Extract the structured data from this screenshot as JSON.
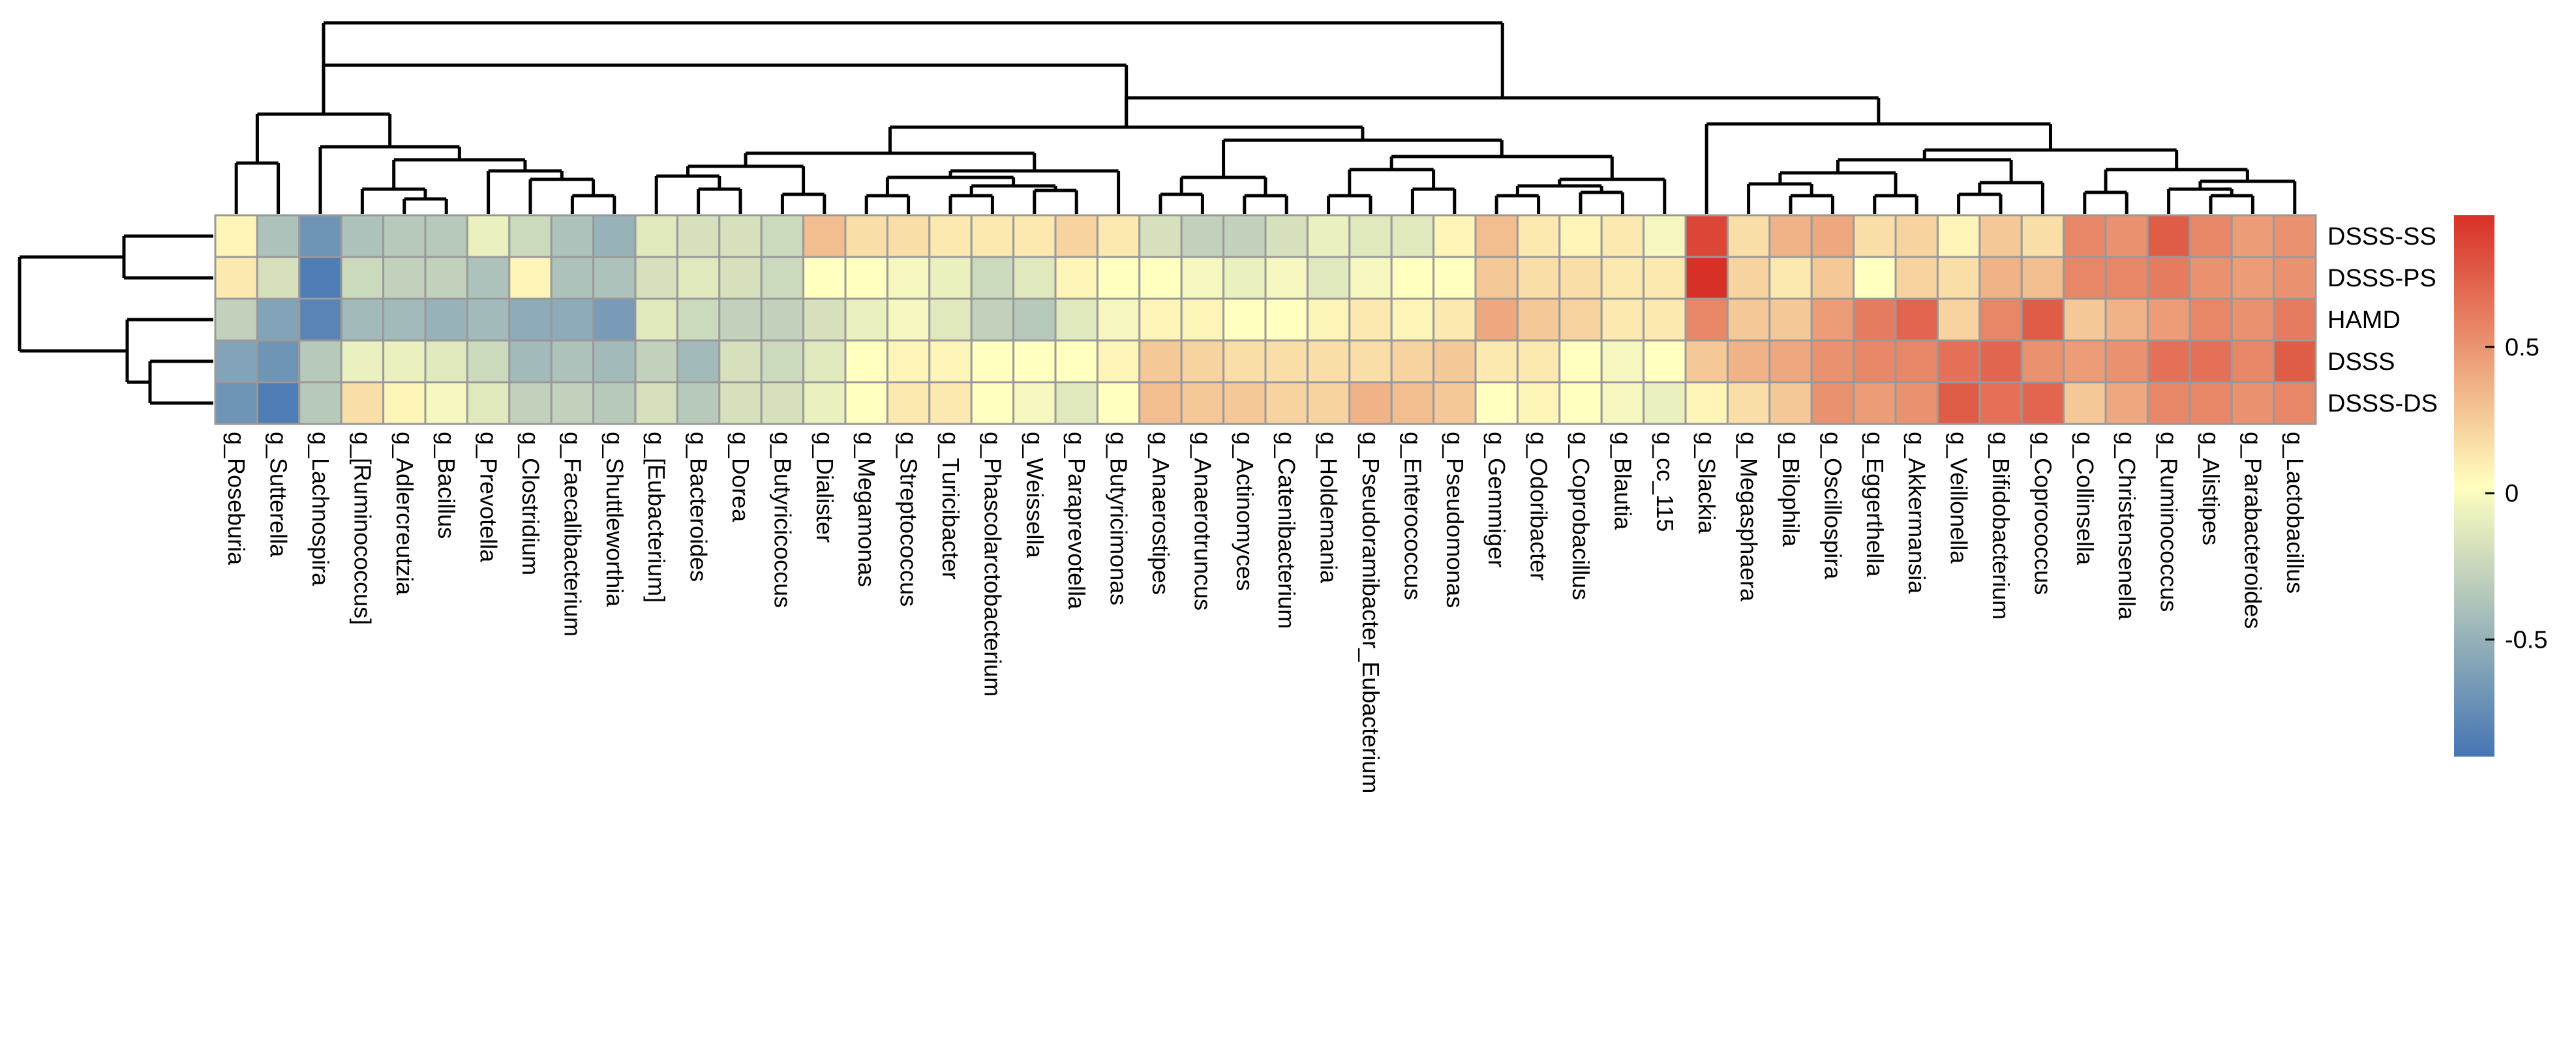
{
  "chart_data": {
    "type": "heatmap",
    "title": "",
    "xlabel": "",
    "ylabel": "",
    "rows": [
      "DSSS-SS",
      "DSSS-PS",
      "HAMD",
      "DSSS",
      "DSSS-DS"
    ],
    "columns": [
      "g_Roseburia",
      "g_Sutterella",
      "g_Lachnospira",
      "g_[Ruminococcus]",
      "g_Adlercreutzia",
      "g_Bacillus",
      "g_Prevotella",
      "g_Clostridium",
      "g_Faecalibacterium",
      "g_Shuttleworthia",
      "g_[Eubacterium]",
      "g_Bacteroides",
      "g_Dorea",
      "g_Butyricicoccus",
      "g_Dialister",
      "g_Megamonas",
      "g_Streptococcus",
      "g_Turicibacter",
      "g_Phascolarctobacterium",
      "g_Weissella",
      "g_Paraprevotella",
      "g_Butyricimonas",
      "g_Anaerostipes",
      "g_Anaerotruncus",
      "g_Actinomyces",
      "g_Catenibacterium",
      "g_Holdemania",
      "g_Pseudoramibacter_Eubacterium",
      "g_Enterococcus",
      "g_Pseudomonas",
      "g_Gemmiger",
      "g_Odoribacter",
      "g_Coprobacillus",
      "g_Blautia",
      "g_cc_115",
      "g_Slackia",
      "g_Megasphaera",
      "g_Bilophila",
      "g_Oscillospira",
      "g_Eggerthella",
      "g_Akkermansia",
      "g_Veillonella",
      "g_Bifidobacterium",
      "g_Coprococcus",
      "g_Collinsella",
      "g_Christensenella",
      "g_Ruminococcus",
      "g_Alistipes",
      "g_Parabacteroides",
      "g_Lactobacillus"
    ],
    "values": [
      [
        0.05,
        -0.4,
        -0.7,
        -0.4,
        -0.35,
        -0.35,
        -0.1,
        -0.25,
        -0.4,
        -0.5,
        -0.15,
        -0.2,
        -0.2,
        -0.25,
        0.3,
        0.15,
        0.15,
        0.1,
        0.1,
        0.1,
        0.2,
        0.1,
        -0.2,
        -0.3,
        -0.3,
        -0.2,
        -0.1,
        -0.15,
        -0.15,
        0.05,
        0.3,
        0.1,
        0.05,
        0.1,
        -0.05,
        0.85,
        0.15,
        0.35,
        0.4,
        0.15,
        0.2,
        0.05,
        0.25,
        0.15,
        0.55,
        0.5,
        0.75,
        0.55,
        0.45,
        0.5
      ],
      [
        0.1,
        -0.2,
        -0.85,
        -0.25,
        -0.3,
        -0.3,
        -0.4,
        0.05,
        -0.4,
        -0.4,
        -0.2,
        -0.15,
        -0.2,
        -0.25,
        0.0,
        0.0,
        -0.05,
        -0.1,
        -0.25,
        -0.15,
        0.05,
        0.0,
        0.0,
        -0.05,
        -0.1,
        -0.05,
        -0.15,
        -0.05,
        0.0,
        0.0,
        0.25,
        0.15,
        0.15,
        0.1,
        0.1,
        0.95,
        0.2,
        0.1,
        0.25,
        0.0,
        0.2,
        0.15,
        0.35,
        0.3,
        0.55,
        0.55,
        0.6,
        0.5,
        0.45,
        0.5
      ],
      [
        -0.3,
        -0.6,
        -0.8,
        -0.45,
        -0.45,
        -0.5,
        -0.45,
        -0.55,
        -0.55,
        -0.65,
        -0.15,
        -0.25,
        -0.3,
        -0.3,
        -0.2,
        -0.1,
        -0.05,
        -0.15,
        -0.3,
        -0.35,
        -0.15,
        -0.05,
        0.05,
        0.05,
        0.0,
        0.0,
        0.05,
        0.1,
        0.05,
        0.1,
        0.4,
        0.25,
        0.2,
        0.1,
        0.1,
        0.55,
        0.25,
        0.25,
        0.45,
        0.6,
        0.7,
        0.2,
        0.55,
        0.75,
        0.25,
        0.35,
        0.45,
        0.55,
        0.5,
        0.6
      ],
      [
        -0.6,
        -0.7,
        -0.35,
        -0.1,
        -0.1,
        -0.15,
        -0.25,
        -0.45,
        -0.4,
        -0.45,
        -0.3,
        -0.45,
        -0.2,
        -0.25,
        -0.15,
        0.0,
        0.05,
        0.05,
        0.0,
        0.0,
        0.0,
        0.05,
        0.25,
        0.2,
        0.15,
        0.15,
        0.15,
        0.15,
        0.2,
        0.25,
        0.1,
        0.1,
        0.0,
        -0.05,
        0.0,
        0.25,
        0.35,
        0.4,
        0.5,
        0.55,
        0.55,
        0.65,
        0.7,
        0.5,
        0.45,
        0.5,
        0.65,
        0.65,
        0.55,
        0.75
      ],
      [
        -0.7,
        -0.85,
        -0.35,
        0.15,
        0.05,
        -0.05,
        -0.15,
        -0.3,
        -0.3,
        -0.35,
        -0.2,
        -0.35,
        -0.2,
        -0.2,
        -0.1,
        0.0,
        0.1,
        0.1,
        0.0,
        -0.05,
        -0.15,
        0.0,
        0.3,
        0.25,
        0.25,
        0.2,
        0.2,
        0.35,
        0.3,
        0.25,
        0.0,
        0.05,
        0.0,
        -0.05,
        -0.1,
        0.05,
        0.15,
        0.25,
        0.5,
        0.45,
        0.5,
        0.75,
        0.65,
        0.7,
        0.25,
        0.4,
        0.55,
        0.55,
        0.5,
        0.55
      ]
    ],
    "color_scale": {
      "min": -0.9,
      "max": 0.95,
      "low_color": "#4575b4",
      "mid_color": "#ffffbf",
      "high_color": "#d73027",
      "ticks": [
        0.5,
        0,
        -0.5
      ],
      "tick_labels": [
        "0.5",
        "0",
        "-0.5"
      ]
    },
    "grid_color": "#999999",
    "legend_placement": "right"
  }
}
